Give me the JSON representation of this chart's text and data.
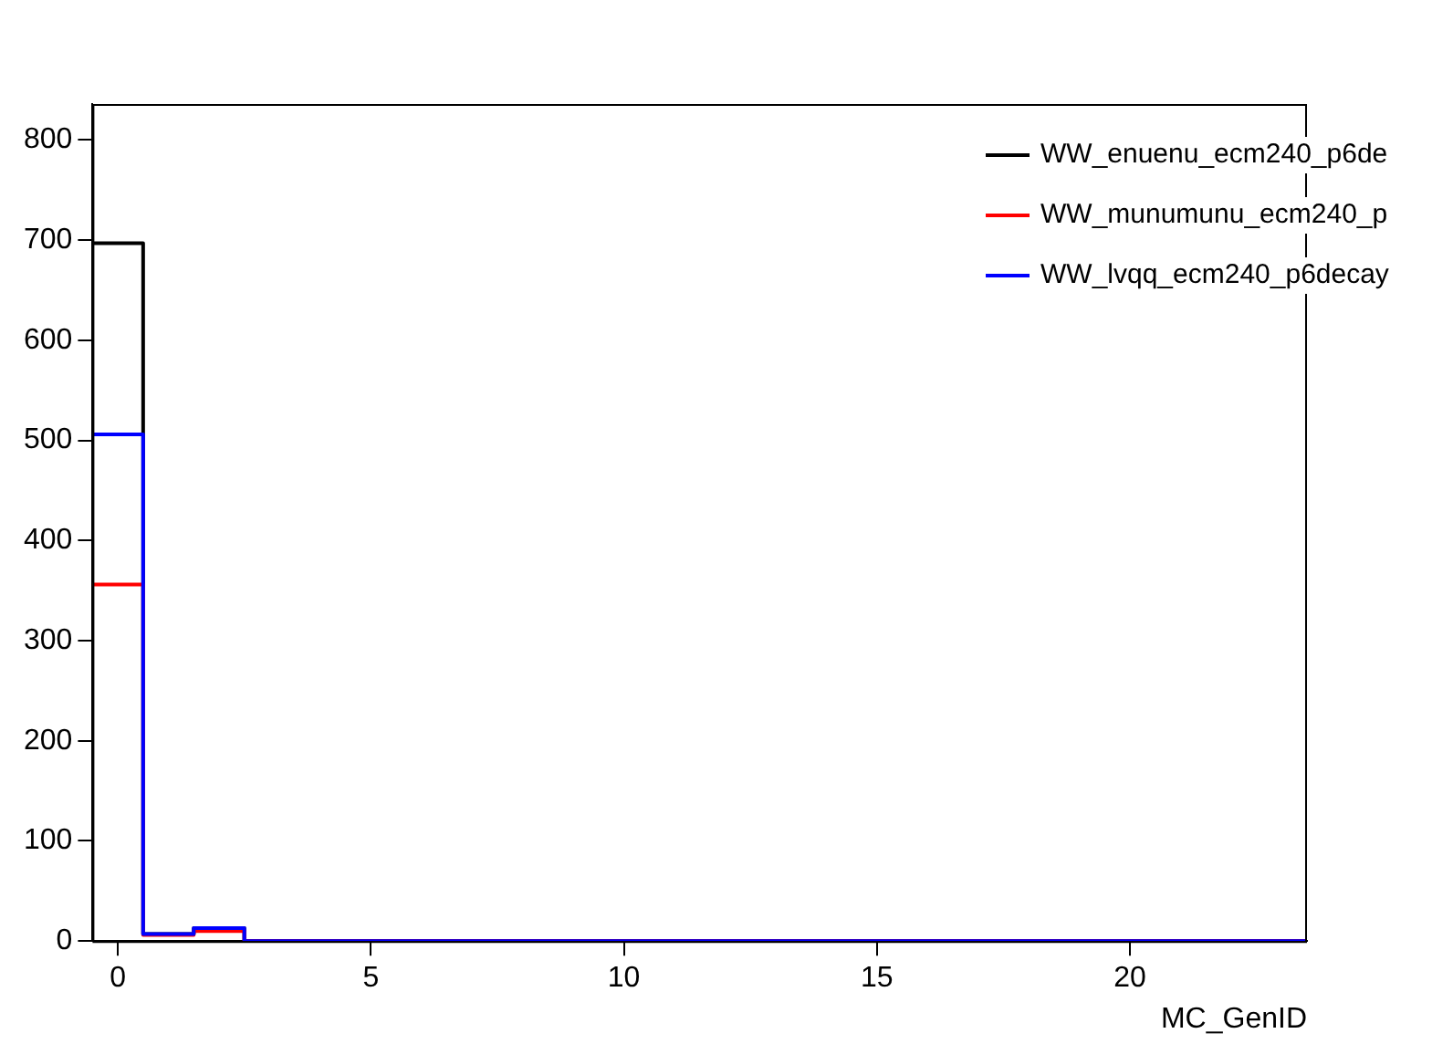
{
  "chart_data": {
    "type": "histogram",
    "xlabel": "MC_GenID",
    "bins": [
      -0.5,
      0.5,
      1.5,
      2.5,
      3.5,
      4.5,
      5.5,
      6.5,
      7.5,
      8.5,
      9.5,
      10.5,
      11.5,
      12.5,
      13.5,
      14.5,
      15.5,
      16.5,
      17.5,
      18.5,
      19.5,
      20.5,
      21.5,
      22.5,
      23.5
    ],
    "series": [
      {
        "name": "WW_enuenu_ecm240_p6de",
        "color": "#000000",
        "values": [
          697,
          7,
          13,
          0,
          0,
          0,
          0,
          0,
          0,
          0,
          0,
          0,
          0,
          0,
          0,
          0,
          0,
          0,
          0,
          0,
          0,
          0,
          0,
          0
        ]
      },
      {
        "name": "WW_munumunu_ecm240_p",
        "color": "#ff0000",
        "values": [
          356,
          6,
          10,
          0,
          0,
          0,
          0,
          0,
          0,
          0,
          0,
          0,
          0,
          0,
          0,
          0,
          0,
          0,
          0,
          0,
          0,
          0,
          0,
          0
        ]
      },
      {
        "name": "WW_lvqq_ecm240_p6decay",
        "color": "#0000ff",
        "values": [
          506,
          7,
          13,
          0,
          0,
          0,
          0,
          0,
          0,
          0,
          0,
          0,
          0,
          0,
          0,
          0,
          0,
          0,
          0,
          0,
          0,
          0,
          0,
          0
        ]
      }
    ],
    "xlim": [
      -0.5,
      23.5
    ],
    "xticks": [
      0,
      5,
      10,
      15,
      20
    ],
    "ylim": [
      0,
      836
    ],
    "yticks": [
      0,
      100,
      200,
      300,
      400,
      500,
      600,
      700,
      800
    ],
    "grid": false,
    "legend": "top right"
  }
}
